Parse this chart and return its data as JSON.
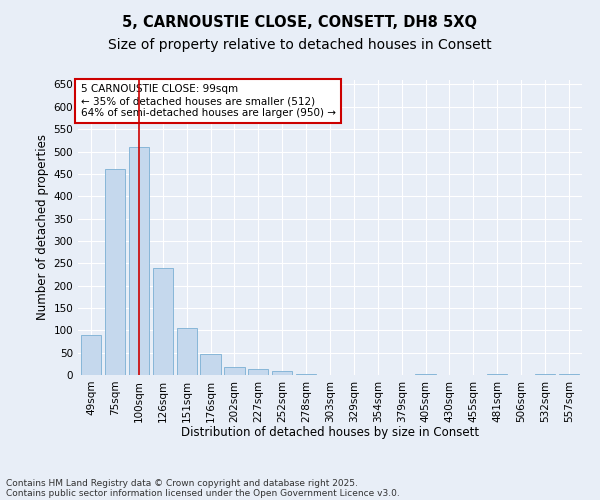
{
  "title1": "5, CARNOUSTIE CLOSE, CONSETT, DH8 5XQ",
  "title2": "Size of property relative to detached houses in Consett",
  "xlabel": "Distribution of detached houses by size in Consett",
  "ylabel": "Number of detached properties",
  "categories": [
    "49sqm",
    "75sqm",
    "100sqm",
    "126sqm",
    "151sqm",
    "176sqm",
    "202sqm",
    "227sqm",
    "252sqm",
    "278sqm",
    "303sqm",
    "329sqm",
    "354sqm",
    "379sqm",
    "405sqm",
    "430sqm",
    "455sqm",
    "481sqm",
    "506sqm",
    "532sqm",
    "557sqm"
  ],
  "values": [
    90,
    460,
    510,
    240,
    105,
    48,
    18,
    13,
    8,
    3,
    0,
    0,
    0,
    0,
    3,
    0,
    0,
    3,
    0,
    3,
    3
  ],
  "bar_color": "#c5d8ed",
  "bar_edge_color": "#7bafd4",
  "background_color": "#e8eef7",
  "grid_color": "#ffffff",
  "annotation_text": "5 CARNOUSTIE CLOSE: 99sqm\n← 35% of detached houses are smaller (512)\n64% of semi-detached houses are larger (950) →",
  "vline_x_index": 2,
  "vline_color": "#cc0000",
  "annotation_box_color": "#cc0000",
  "ylim": [
    0,
    660
  ],
  "yticks": [
    0,
    50,
    100,
    150,
    200,
    250,
    300,
    350,
    400,
    450,
    500,
    550,
    600,
    650
  ],
  "footer1": "Contains HM Land Registry data © Crown copyright and database right 2025.",
  "footer2": "Contains public sector information licensed under the Open Government Licence v3.0.",
  "title1_fontsize": 10.5,
  "title2_fontsize": 10,
  "annotation_fontsize": 7.5,
  "axis_fontsize": 8.5,
  "tick_fontsize": 7.5,
  "footer_fontsize": 6.5
}
